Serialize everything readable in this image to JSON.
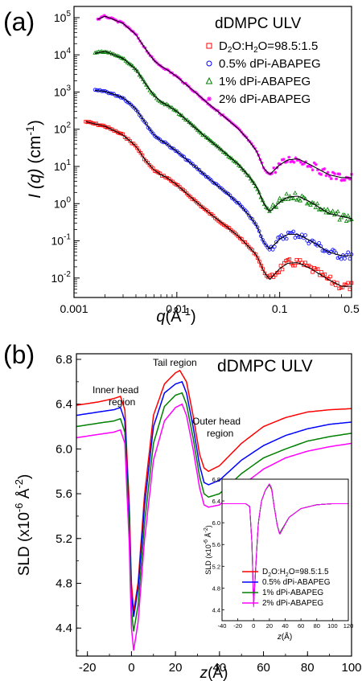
{
  "panel_a": {
    "panel_label": "(a)",
    "legend_title": "dDMPC ULV",
    "xtick_labels": [
      "0.001",
      "0.01",
      "0.1",
      "0.5"
    ],
    "ytick_mantissa": "10",
    "ytick_exponents": [
      "5",
      "4",
      "3",
      "2",
      "1",
      "0",
      "-1",
      "-2"
    ],
    "ylabel_I": "I",
    "ylabel_q": "(q)",
    "ylabel_unit": "(cm",
    "ylabel_unit_exp": "-1",
    "ylabel_close": ")",
    "xlabel_q": "q",
    "xlabel_unit": "(Å",
    "xlabel_unit_exp": "-1",
    "xlabel_close": ")",
    "legend_entries": [
      {
        "pre": "D",
        "sub1": "2",
        "mid": "O:H",
        "sub2": "2",
        "post": "O=98.5:1.5",
        "color": "#ff0000"
      },
      {
        "pre": "0.5% dPi-ABAPEG",
        "sub1": "",
        "mid": "",
        "sub2": "",
        "post": "",
        "color": "#0000ff"
      },
      {
        "pre": "1% dPi-ABAPEG",
        "sub1": "",
        "mid": "",
        "sub2": "",
        "post": "",
        "color": "#008000"
      },
      {
        "pre": "2% dPi-ABAPEG",
        "sub1": "",
        "mid": "",
        "sub2": "",
        "post": "",
        "color": "#ff00ff"
      }
    ]
  },
  "panel_b": {
    "panel_label": "(b)",
    "title": "dDMPC ULV",
    "ylabel_pre": "SLD (x10",
    "ylabel_exp1": "-6",
    "ylabel_mid": " Å",
    "ylabel_exp2": "-2",
    "ylabel_close": ")",
    "xlabel_z": "z",
    "xlabel_unit": "(Å)",
    "xtick_labels": [
      "-20",
      "0",
      "20",
      "40",
      "60",
      "80",
      "100"
    ],
    "ytick_labels": [
      "4.4",
      "4.8",
      "5.2",
      "5.6",
      "6.0",
      "6.4",
      "6.8"
    ],
    "annotations": {
      "tail": "Tail region",
      "inner1": "Inner head",
      "inner2": "region",
      "outer1": "Outer head",
      "outer2": "region"
    },
    "legend_entries": [
      {
        "pre": "D",
        "sub1": "2",
        "mid": "O:H",
        "sub2": "2",
        "post": "O=98.5:1.5",
        "color": "#ff0000"
      },
      {
        "pre": "0.5% dPi-ABAPEG",
        "sub1": "",
        "mid": "",
        "sub2": "",
        "post": "",
        "color": "#0000ff"
      },
      {
        "pre": "1% dPi-ABAPEG",
        "sub1": "",
        "mid": "",
        "sub2": "",
        "post": "",
        "color": "#008000"
      },
      {
        "pre": "2% dPi-ABAPEG",
        "sub1": "",
        "mid": "",
        "sub2": "",
        "post": "",
        "color": "#ff00ff"
      }
    ],
    "inset": {
      "ylabel_pre": "SLD (x10",
      "ylabel_exp1": "-6",
      "ylabel_mid": " Å",
      "ylabel_exp2": "-2",
      "ylabel_close": ")",
      "xlabel_z": "z",
      "xlabel_unit": "(Å)",
      "xtick_labels": [
        "-40",
        "-20",
        "0",
        "20",
        "40",
        "60",
        "80",
        "100",
        "120"
      ],
      "ytick_labels": [
        "4.4",
        "4.8",
        "5.2",
        "5.6",
        "6.0",
        "6.4",
        "6.8"
      ]
    }
  },
  "chart_data": [
    {
      "type": "scatter",
      "panel": "a",
      "title": "dDMPC ULV",
      "xlabel": "q(Å^-1)",
      "ylabel": "I (q) (cm^-1)",
      "xscale": "log",
      "yscale": "log",
      "xlim": [
        0.001,
        0.5
      ],
      "ylim": [
        0.003,
        200000
      ],
      "grid": false,
      "legend": "top-right",
      "series": [
        {
          "name": "D2O:H2O=98.5:1.5",
          "color": "#ff0000",
          "x": [
            0.0013,
            0.002,
            0.003,
            0.004,
            0.005,
            0.006,
            0.007,
            0.008,
            0.01,
            0.015,
            0.02,
            0.03,
            0.04,
            0.05,
            0.06,
            0.07,
            0.08,
            0.1,
            0.12,
            0.15,
            0.2,
            0.3,
            0.4,
            0.5
          ],
          "y": [
            160,
            120,
            70,
            35,
            14,
            8,
            6,
            5,
            3.2,
            1.2,
            0.6,
            0.25,
            0.13,
            0.07,
            0.04,
            0.015,
            0.009,
            0.018,
            0.025,
            0.026,
            0.018,
            0.009,
            0.006,
            0.006
          ]
        },
        {
          "name": "0.5% dPi-ABAPEG",
          "color": "#0000ff",
          "x": [
            0.0016,
            0.002,
            0.003,
            0.004,
            0.005,
            0.006,
            0.007,
            0.008,
            0.01,
            0.015,
            0.02,
            0.03,
            0.04,
            0.05,
            0.06,
            0.07,
            0.08,
            0.1,
            0.12,
            0.15,
            0.2,
            0.3,
            0.4,
            0.5
          ],
          "y": [
            1100,
            1050,
            700,
            350,
            140,
            70,
            50,
            40,
            25,
            10,
            5,
            2,
            1,
            0.5,
            0.25,
            0.09,
            0.06,
            0.11,
            0.15,
            0.15,
            0.1,
            0.05,
            0.04,
            0.04
          ]
        },
        {
          "name": "1% dPi-ABAPEG",
          "color": "#008000",
          "x": [
            0.0016,
            0.002,
            0.003,
            0.004,
            0.005,
            0.006,
            0.007,
            0.008,
            0.01,
            0.015,
            0.02,
            0.03,
            0.04,
            0.05,
            0.06,
            0.07,
            0.08,
            0.1,
            0.12,
            0.15,
            0.2,
            0.3,
            0.4,
            0.5
          ],
          "y": [
            11000,
            12500,
            8000,
            4000,
            1600,
            800,
            550,
            450,
            300,
            110,
            55,
            22,
            11,
            5.5,
            2.7,
            1,
            0.6,
            1.1,
            1.5,
            1.6,
            1.1,
            0.55,
            0.45,
            0.4
          ]
        },
        {
          "name": "2% dPi-ABAPEG",
          "color": "#ff00ff",
          "x": [
            0.0017,
            0.002,
            0.003,
            0.004,
            0.005,
            0.006,
            0.007,
            0.008,
            0.01,
            0.015,
            0.02,
            0.03,
            0.04,
            0.05,
            0.06,
            0.07,
            0.08,
            0.1,
            0.12,
            0.15,
            0.2,
            0.3,
            0.4,
            0.5
          ],
          "y": [
            90000,
            110000,
            70000,
            35000,
            14000,
            7000,
            5000,
            4000,
            2600,
            1000,
            500,
            200,
            100,
            50,
            25,
            9,
            6,
            11,
            15,
            16,
            11,
            6,
            5,
            5
          ]
        }
      ]
    },
    {
      "type": "line",
      "panel": "b",
      "title": "dDMPC ULV",
      "xlabel": "z(Å)",
      "ylabel": "SLD (x10^-6 Å^-2)",
      "xlim": [
        -25,
        100
      ],
      "ylim": [
        4.15,
        6.85
      ],
      "grid": false,
      "legend": "inset",
      "annotations": [
        "Tail region",
        "Inner head region",
        "Outer head region"
      ],
      "series": [
        {
          "name": "D2O:H2O=98.5:1.5",
          "color": "#ff0000",
          "x": [
            -25,
            -15,
            -8,
            -5,
            -3,
            -1,
            0,
            1,
            3,
            6,
            10,
            15,
            20,
            22,
            25,
            28,
            31,
            33,
            35,
            40,
            50,
            60,
            70,
            80,
            90,
            100
          ],
          "y": [
            6.39,
            6.42,
            6.45,
            6.47,
            6.35,
            5.5,
            4.8,
            4.55,
            4.8,
            5.6,
            6.3,
            6.58,
            6.68,
            6.7,
            6.6,
            6.3,
            5.95,
            5.83,
            5.8,
            5.85,
            6.05,
            6.2,
            6.28,
            6.33,
            6.35,
            6.36
          ]
        },
        {
          "name": "0.5% dPi-ABAPEG",
          "color": "#0000ff",
          "x": [
            -25,
            -15,
            -8,
            -5,
            -3,
            -1,
            0,
            1,
            3,
            6,
            10,
            15,
            20,
            23,
            25,
            28,
            31,
            33,
            35,
            40,
            50,
            60,
            70,
            80,
            90,
            100
          ],
          "y": [
            6.3,
            6.33,
            6.35,
            6.37,
            6.25,
            5.4,
            4.7,
            4.5,
            4.75,
            5.5,
            6.2,
            6.5,
            6.58,
            6.6,
            6.5,
            6.2,
            5.85,
            5.7,
            5.68,
            5.72,
            5.9,
            6.03,
            6.12,
            6.18,
            6.22,
            6.24
          ]
        },
        {
          "name": "1% dPi-ABAPEG",
          "color": "#008000",
          "x": [
            -25,
            -15,
            -8,
            -5,
            -3,
            -1,
            0,
            1,
            3,
            6,
            10,
            15,
            20,
            23,
            25,
            28,
            31,
            33,
            35,
            40,
            50,
            60,
            70,
            80,
            90,
            100
          ],
          "y": [
            6.2,
            6.23,
            6.25,
            6.27,
            6.15,
            5.3,
            4.55,
            4.37,
            4.6,
            5.35,
            6.05,
            6.38,
            6.48,
            6.5,
            6.4,
            6.1,
            5.75,
            5.6,
            5.57,
            5.6,
            5.78,
            5.92,
            6.0,
            6.07,
            6.11,
            6.14
          ]
        },
        {
          "name": "2% dPi-ABAPEG",
          "color": "#ff00ff",
          "x": [
            -25,
            -15,
            -8,
            -5,
            -3,
            -1,
            0,
            1,
            3,
            6,
            10,
            15,
            20,
            23,
            25,
            28,
            31,
            33,
            35,
            40,
            50,
            60,
            70,
            80,
            90,
            100
          ],
          "y": [
            6.1,
            6.13,
            6.15,
            6.17,
            6.05,
            5.15,
            4.4,
            4.2,
            4.45,
            5.2,
            5.9,
            6.25,
            6.37,
            6.4,
            6.3,
            6.0,
            5.65,
            5.5,
            5.48,
            5.5,
            5.67,
            5.82,
            5.92,
            5.98,
            6.02,
            6.05
          ]
        }
      ]
    },
    {
      "type": "line",
      "panel": "b-inset",
      "xlabel": "z(Å)",
      "ylabel": "SLD (x10^-6 Å^-2)",
      "xlim": [
        -40,
        120
      ],
      "ylim": [
        4.2,
        6.8
      ],
      "grid": false,
      "legend": "bottom-right",
      "series": [
        {
          "name": "D2O:H2O=98.5:1.5",
          "color": "#ff0000",
          "x": [
            -40,
            -10,
            -5,
            -2,
            0,
            2,
            6,
            10,
            15,
            20,
            23,
            26,
            30,
            33,
            36,
            45,
            60,
            80,
            100,
            120
          ],
          "y": [
            6.35,
            6.35,
            6.3,
            5.6,
            4.5,
            5.0,
            6.0,
            6.4,
            6.6,
            6.7,
            6.6,
            6.3,
            5.95,
            5.8,
            5.88,
            6.1,
            6.26,
            6.33,
            6.35,
            6.35
          ]
        },
        {
          "name": "0.5% dPi-ABAPEG",
          "color": "#0000ff",
          "x": [
            -40,
            -10,
            -5,
            -2,
            0,
            2,
            6,
            10,
            15,
            20,
            23,
            26,
            30,
            33,
            36,
            45,
            60,
            80,
            100,
            120
          ],
          "y": [
            6.35,
            6.35,
            6.3,
            5.6,
            4.5,
            5.0,
            6.0,
            6.4,
            6.6,
            6.7,
            6.62,
            6.3,
            5.95,
            5.8,
            5.88,
            6.1,
            6.26,
            6.33,
            6.35,
            6.35
          ]
        },
        {
          "name": "1% dPi-ABAPEG",
          "color": "#008000",
          "x": [
            -40,
            -10,
            -5,
            -2,
            0,
            2,
            6,
            10,
            15,
            20,
            23,
            26,
            30,
            33,
            36,
            45,
            60,
            80,
            100,
            120
          ],
          "y": [
            6.35,
            6.35,
            6.3,
            5.6,
            4.5,
            5.0,
            6.0,
            6.4,
            6.6,
            6.7,
            6.62,
            6.3,
            5.95,
            5.8,
            5.88,
            6.1,
            6.26,
            6.33,
            6.35,
            6.35
          ]
        },
        {
          "name": "2% dPi-ABAPEG",
          "color": "#ff00ff",
          "x": [
            -40,
            -10,
            -5,
            -2,
            0,
            2,
            6,
            10,
            15,
            20,
            23,
            26,
            30,
            33,
            36,
            45,
            60,
            80,
            100,
            120
          ],
          "y": [
            6.35,
            6.35,
            6.3,
            5.6,
            4.45,
            5.0,
            6.0,
            6.4,
            6.6,
            6.72,
            6.63,
            6.3,
            5.95,
            5.78,
            5.86,
            6.1,
            6.26,
            6.33,
            6.35,
            6.35
          ]
        }
      ]
    }
  ]
}
